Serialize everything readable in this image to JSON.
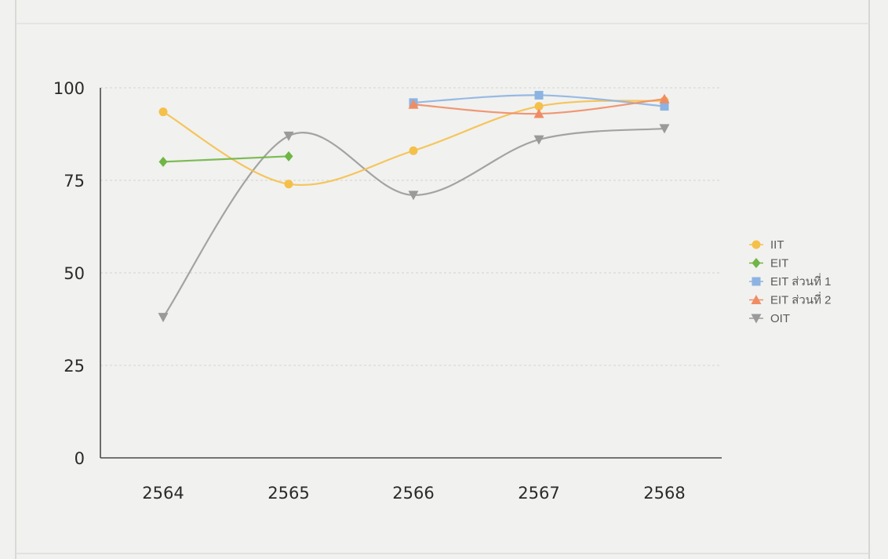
{
  "chart_data": {
    "type": "line",
    "title": "",
    "xlabel": "",
    "ylabel": "",
    "categories": [
      "2564",
      "2565",
      "2566",
      "2567",
      "2568"
    ],
    "ylim": [
      0,
      100
    ],
    "yticks": [
      "0",
      "25",
      "50",
      "75",
      "100"
    ],
    "grid": true,
    "smooth": true,
    "legend_position": "right",
    "series": [
      {
        "name": "IIT",
        "color": "#f5c04a",
        "marker": "circle",
        "values": [
          93.5,
          74,
          83,
          95,
          96.5
        ]
      },
      {
        "name": "EIT",
        "color": "#70b545",
        "marker": "diamond",
        "values": [
          80,
          81.5,
          null,
          null,
          null
        ]
      },
      {
        "name": "EIT ส่วนที่ 1",
        "color": "#8db3e2",
        "marker": "square",
        "values": [
          null,
          null,
          96,
          98,
          95
        ]
      },
      {
        "name": "EIT ส่วนที่ 2",
        "color": "#f08c64",
        "marker": "triangle",
        "values": [
          null,
          null,
          95.5,
          93,
          97
        ]
      },
      {
        "name": "OIT",
        "color": "#9a9a9a",
        "marker": "triangle-down",
        "values": [
          38,
          87,
          71,
          86,
          89
        ]
      }
    ]
  }
}
